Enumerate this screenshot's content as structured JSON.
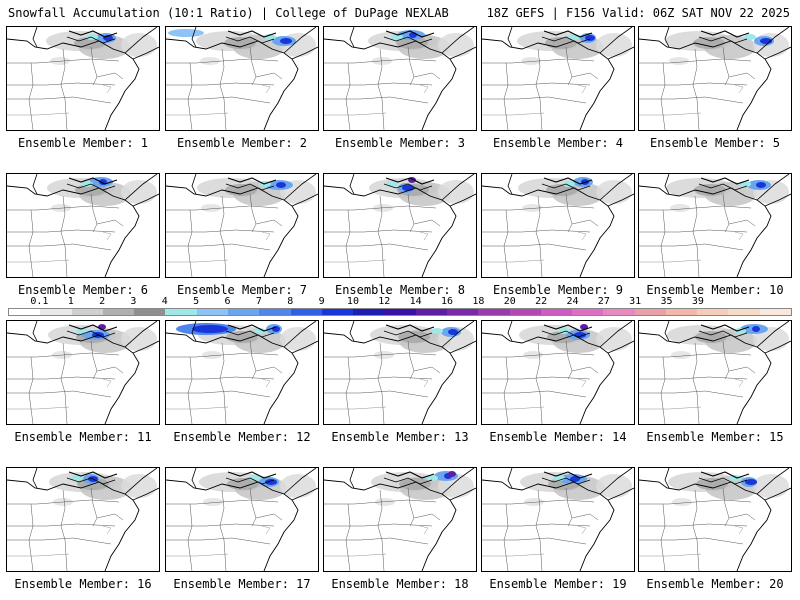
{
  "header": {
    "left": "Snowfall Accumulation (10:1 Ratio) | College of DuPage NEXLAB",
    "right": "18Z GEFS | F156 Valid: 06Z SAT NOV 22 2025"
  },
  "colorbar": {
    "labels": [
      "0.1",
      "1",
      "2",
      "3",
      "4",
      "5",
      "6",
      "7",
      "8",
      "9",
      "10",
      "12",
      "14",
      "16",
      "18",
      "20",
      "22",
      "24",
      "27",
      "31",
      "35",
      "39"
    ],
    "colors": [
      "#ffffff",
      "#e8e8e8",
      "#cfcfcf",
      "#b0b0b0",
      "#8f8f8f",
      "#9fe8e8",
      "#8fc3f5",
      "#6aa6f0",
      "#4f86ec",
      "#2f5fe4",
      "#1a36d8",
      "#1e1eb4",
      "#3b12a8",
      "#5e1da3",
      "#7a2aa8",
      "#9a3aac",
      "#b34ab4",
      "#cc5cc0",
      "#dd70c4",
      "#e888c0",
      "#e8a0a8",
      "#efb8a8",
      "#f4ccb8",
      "#f8dcc8",
      "#fbe8dc"
    ]
  },
  "members": [
    {
      "label": "Ensemble Member: 1"
    },
    {
      "label": "Ensemble Member: 2"
    },
    {
      "label": "Ensemble Member: 3"
    },
    {
      "label": "Ensemble Member: 4"
    },
    {
      "label": "Ensemble Member: 5"
    },
    {
      "label": "Ensemble Member: 6"
    },
    {
      "label": "Ensemble Member: 7"
    },
    {
      "label": "Ensemble Member: 8"
    },
    {
      "label": "Ensemble Member: 9"
    },
    {
      "label": "Ensemble Member: 10"
    },
    {
      "label": "Ensemble Member: 11"
    },
    {
      "label": "Ensemble Member: 12"
    },
    {
      "label": "Ensemble Member: 13"
    },
    {
      "label": "Ensemble Member: 14"
    },
    {
      "label": "Ensemble Member: 15"
    },
    {
      "label": "Ensemble Member: 16"
    },
    {
      "label": "Ensemble Member: 17"
    },
    {
      "label": "Ensemble Member: 18"
    },
    {
      "label": "Ensemble Member: 19"
    },
    {
      "label": "Ensemble Member: 20"
    }
  ]
}
